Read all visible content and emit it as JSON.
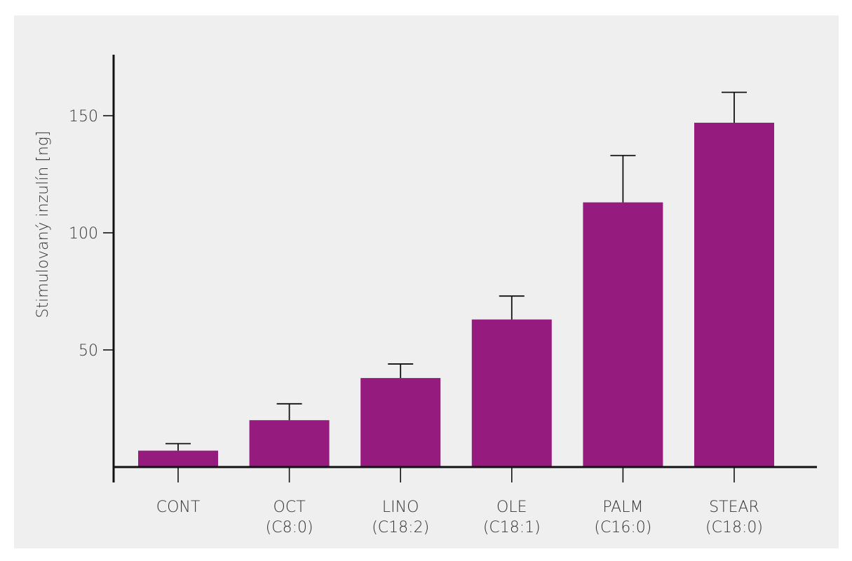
{
  "chart_data": {
    "type": "bar",
    "title": "",
    "ylabel": "Stimulovaný inzulín [ng]",
    "xlabel": "",
    "ylim": [
      0,
      175
    ],
    "yticks": [
      50,
      100,
      150
    ],
    "categories": [
      {
        "line1": "CONT",
        "line2": ""
      },
      {
        "line1": "OCT",
        "line2": "(C8:0)"
      },
      {
        "line1": "LINO",
        "line2": "(C18:2)"
      },
      {
        "line1": "OLE",
        "line2": "(C18:1)"
      },
      {
        "line1": "PALM",
        "line2": "(C16:0)"
      },
      {
        "line1": "STEAR",
        "line2": "(C18:0)"
      }
    ],
    "values": [
      7,
      20,
      38,
      63,
      113,
      147
    ],
    "error_upper": [
      10,
      27,
      44,
      73,
      133,
      160
    ],
    "bar_color": "#951b7e",
    "grid": false,
    "legend": "none"
  }
}
